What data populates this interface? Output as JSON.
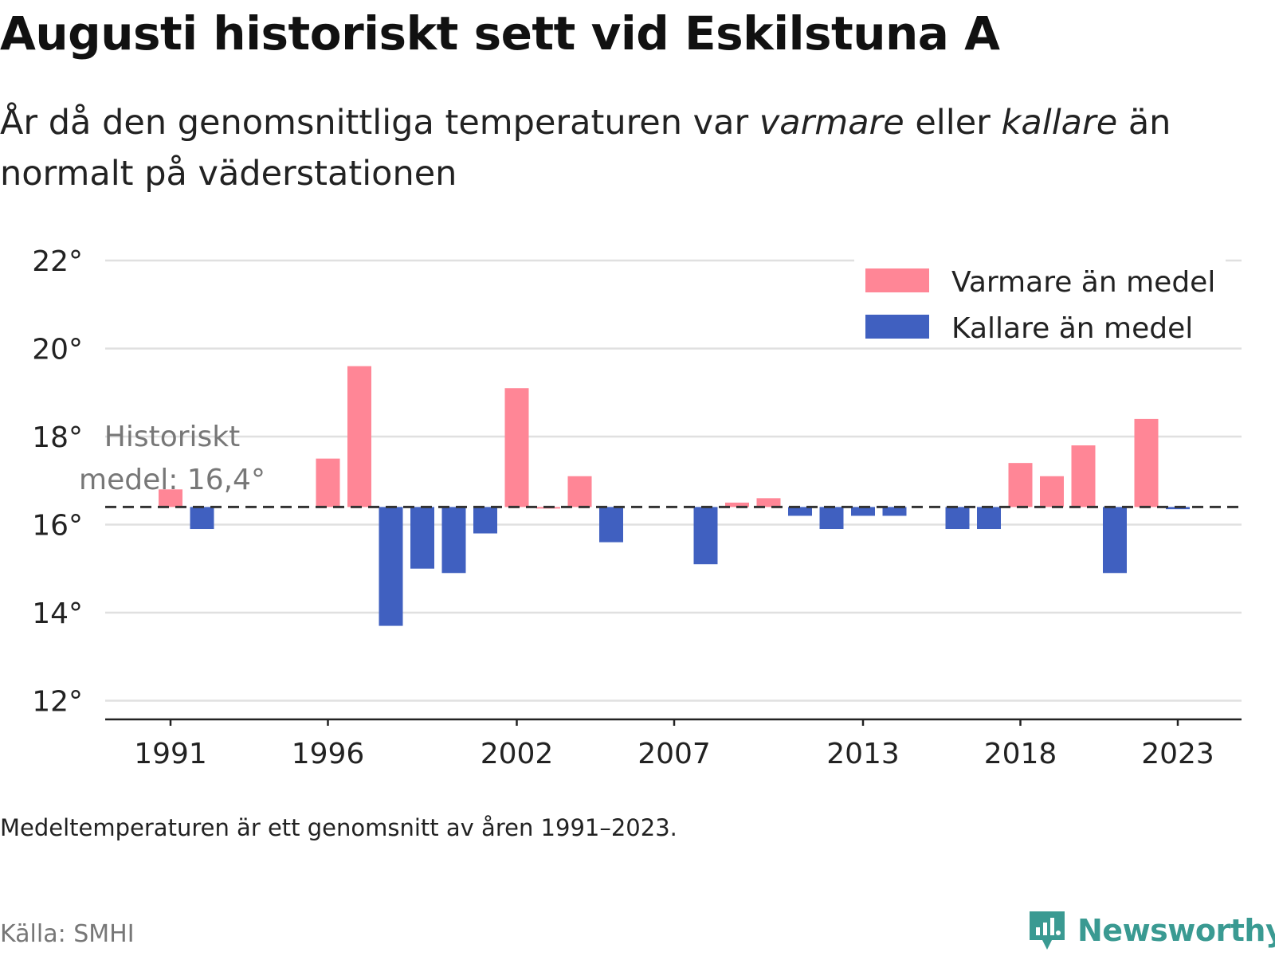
{
  "title": "Augusti historiskt sett vid Eskilstuna A",
  "subtitle": {
    "before": "År då den genomsnittliga temperaturen var ",
    "warm_word": "varmare",
    "middle": " eller ",
    "cold_word": "kallare",
    "after": " än normalt på väderstationen"
  },
  "footnote": "Medeltemperaturen är ett genomsnitt av åren 1991–2023.",
  "source": "Källa: SMHI",
  "brand": "Newsworthy",
  "chart_data": {
    "type": "bar",
    "baseline": 16.4,
    "baseline_label": [
      "Historiskt",
      "medel: 16,4°"
    ],
    "years": [
      1991,
      1992,
      1993,
      1994,
      1995,
      1996,
      1997,
      1998,
      1999,
      2000,
      2001,
      2002,
      2003,
      2004,
      2005,
      2006,
      2007,
      2008,
      2009,
      2010,
      2011,
      2012,
      2013,
      2014,
      2015,
      2016,
      2017,
      2018,
      2019,
      2020,
      2021,
      2022,
      2023
    ],
    "values": [
      16.8,
      15.9,
      null,
      null,
      null,
      17.5,
      19.6,
      13.7,
      15.0,
      14.9,
      15.8,
      19.1,
      16.4,
      17.1,
      15.6,
      null,
      null,
      15.1,
      16.5,
      16.6,
      16.2,
      15.9,
      16.2,
      16.2,
      null,
      15.9,
      15.9,
      17.4,
      17.1,
      17.8,
      14.9,
      18.4,
      16.35
    ],
    "ylim": [
      11.6,
      22.0
    ],
    "yticks": [
      12,
      14,
      16,
      18,
      20,
      22
    ],
    "ytick_labels": [
      "12°",
      "14°",
      "16°",
      "18°",
      "20°",
      "22°"
    ],
    "xticks": [
      1991,
      1996,
      2002,
      2007,
      2013,
      2018,
      2023
    ],
    "xtick_labels": [
      "1991",
      "1996",
      "2002",
      "2007",
      "2013",
      "2018",
      "2023"
    ],
    "legend": [
      {
        "name": "Varmare än medel",
        "color": "#ff8696"
      },
      {
        "name": "Kallare än medel",
        "color": "#4060c0"
      }
    ],
    "legend_position": "top-right",
    "grid": true,
    "colors": {
      "warm": "#ff8696",
      "cold": "#4060c0",
      "grid": "#e0e0e0",
      "axis": "#222222",
      "baseline": "#333333"
    }
  }
}
